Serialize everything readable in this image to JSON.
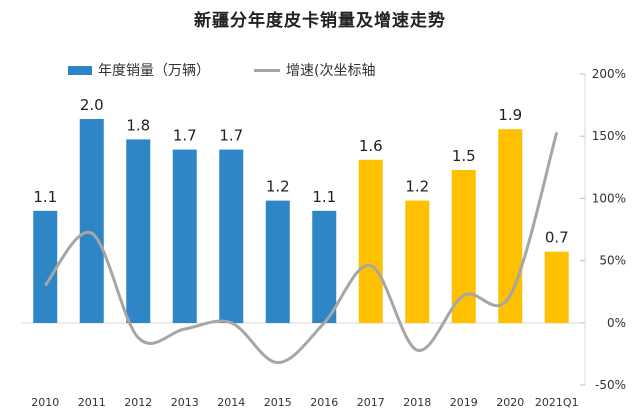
{
  "chart_data": {
    "type": "bar",
    "title": "新疆分年度皮卡销量及增速走势",
    "categories": [
      "2010",
      "2011",
      "2012",
      "2013",
      "2014",
      "2015",
      "2016",
      "2017",
      "2018",
      "2019",
      "2020",
      "2021Q1"
    ],
    "series": [
      {
        "name": "年度销量（万辆）",
        "type": "bar",
        "axis": "left",
        "values": [
          1.1,
          2.0,
          1.8,
          1.7,
          1.7,
          1.2,
          1.1,
          1.6,
          1.2,
          1.5,
          1.9,
          0.7
        ],
        "data_labels": [
          "1.1",
          "2.0",
          "1.8",
          "1.7",
          "1.7",
          "1.2",
          "1.1",
          "1.6",
          "1.2",
          "1.5",
          "1.9",
          "0.7"
        ]
      },
      {
        "name": "增速(次坐标轴",
        "type": "line",
        "axis": "right",
        "values": [
          30,
          72,
          -12,
          -5,
          0,
          -32,
          0,
          46,
          -22,
          22,
          22,
          153
        ]
      }
    ],
    "bar_color_groups": [
      {
        "from": 0,
        "to": 6,
        "color": "#2f86c7"
      },
      {
        "from": 7,
        "to": 11,
        "color": "#ffc000"
      }
    ],
    "line_color": "#a6a6a6",
    "primary_ylim": [
      0,
      2.0
    ],
    "secondary_ylim": [
      -50,
      200
    ],
    "secondary_ticks": [
      "-50%",
      "0%",
      "50%",
      "100%",
      "150%",
      "200%"
    ],
    "xlabel": "",
    "ylabel": "",
    "legend_position": "top-left",
    "grid": false
  }
}
